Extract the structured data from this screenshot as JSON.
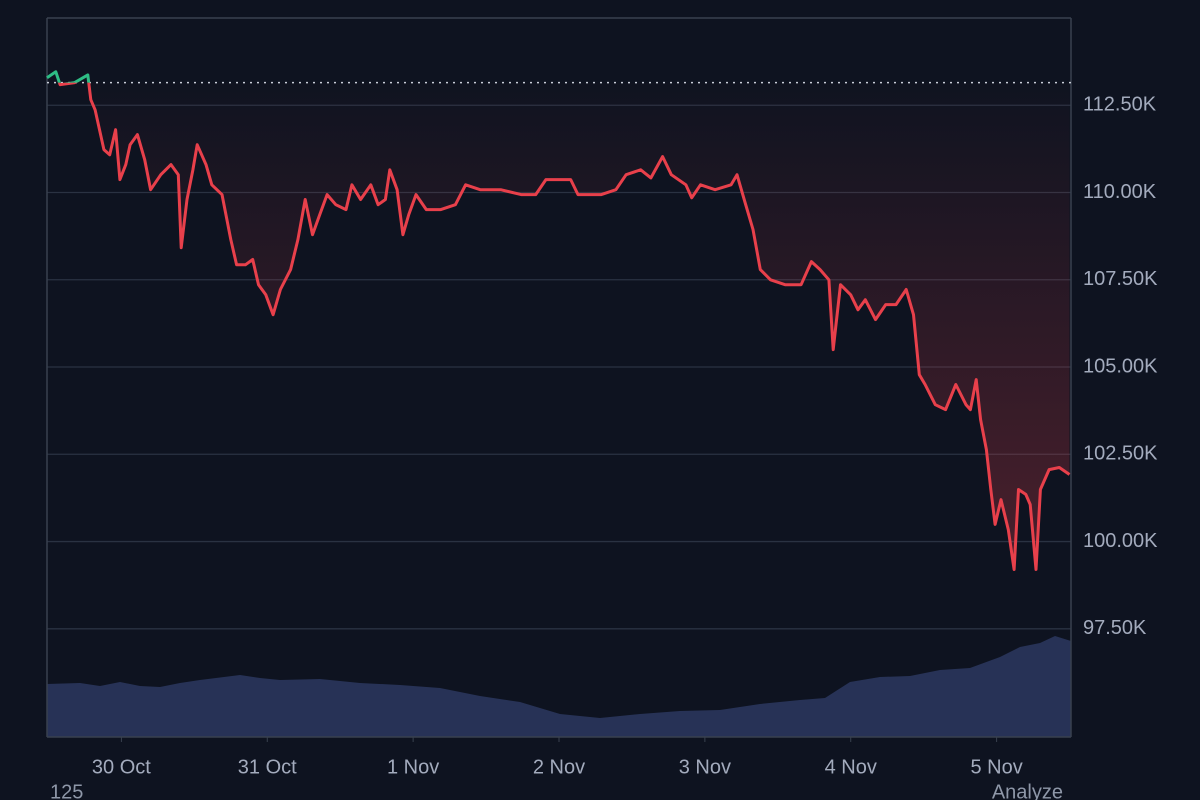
{
  "chart_data": {
    "type": "line",
    "x": [
      -0.51,
      -0.45,
      -0.42,
      -0.32,
      -0.23,
      -0.21,
      -0.18,
      -0.12,
      -0.08,
      -0.04,
      -0.01,
      0.03,
      0.06,
      0.11,
      0.16,
      0.2,
      0.27,
      0.34,
      0.39,
      0.41,
      0.45,
      0.49,
      0.52,
      0.58,
      0.62,
      0.69,
      0.75,
      0.79,
      0.85,
      0.9,
      0.94,
      0.99,
      1.04,
      1.09,
      1.16,
      1.21,
      1.26,
      1.31,
      1.36,
      1.41,
      1.47,
      1.54,
      1.58,
      1.64,
      1.71,
      1.76,
      1.81,
      1.84,
      1.89,
      1.93,
      1.97,
      2.02,
      2.09,
      2.19,
      2.29,
      2.36,
      2.46,
      2.6,
      2.74,
      2.84,
      2.91,
      3.08,
      3.13,
      3.29,
      3.39,
      3.46,
      3.56,
      3.63,
      3.71,
      3.77,
      3.87,
      3.91,
      3.97,
      4.07,
      4.18,
      4.22,
      4.28,
      4.33,
      4.38,
      4.45,
      4.55,
      4.66,
      4.73,
      4.79,
      4.85,
      4.88,
      4.93,
      5.0,
      5.05,
      5.1,
      5.17,
      5.24,
      5.31,
      5.38,
      5.43,
      5.47,
      5.51,
      5.58,
      5.65,
      5.72,
      5.79,
      5.82,
      5.86,
      5.89,
      5.93,
      5.96,
      5.99,
      6.03,
      6.08,
      6.12,
      6.15,
      6.2,
      6.23,
      6.27,
      6.3,
      6.36,
      6.43,
      6.5
    ],
    "values": [
      113290,
      113460,
      113090,
      113150,
      113370,
      112660,
      112370,
      111230,
      111080,
      111800,
      110370,
      110800,
      111370,
      111660,
      110940,
      110080,
      110510,
      110800,
      110510,
      108420,
      109800,
      110650,
      111370,
      110800,
      110220,
      109940,
      108650,
      107930,
      107930,
      108080,
      107360,
      107070,
      106500,
      107220,
      107790,
      108650,
      109800,
      108790,
      109370,
      109940,
      109650,
      109510,
      110220,
      109800,
      110220,
      109650,
      109800,
      110650,
      110080,
      108790,
      109370,
      109940,
      109510,
      109510,
      109650,
      110220,
      110080,
      110080,
      109940,
      109940,
      110370,
      110370,
      109940,
      109940,
      110080,
      110510,
      110650,
      110420,
      111030,
      110510,
      110220,
      109850,
      110220,
      110080,
      110220,
      110510,
      109650,
      108940,
      107790,
      107500,
      107360,
      107360,
      108020,
      107790,
      107500,
      105500,
      107360,
      107070,
      106640,
      106930,
      106360,
      106790,
      106790,
      107220,
      106500,
      104780,
      104500,
      103920,
      103780,
      104500,
      103920,
      103780,
      104640,
      103490,
      102630,
      101490,
      100490,
      101200,
      100340,
      99200,
      101490,
      101350,
      101060,
      99200,
      101490,
      102060,
      102120,
      101920
    ],
    "baseline": 113150,
    "color": "#e8404b",
    "up_color": "#2ebd85",
    "ylim": [
      94400,
      115000
    ],
    "yticks": [
      {
        "value": 97500,
        "label": "97.50K"
      },
      {
        "value": 100000,
        "label": "100.00K"
      },
      {
        "value": 102500,
        "label": "102.50K"
      },
      {
        "value": 105000,
        "label": "105.00K"
      },
      {
        "value": 107500,
        "label": "107.50K"
      },
      {
        "value": 110000,
        "label": "110.00K"
      },
      {
        "value": 112500,
        "label": "112.50K"
      }
    ],
    "xlim": [
      -0.51,
      6.51
    ],
    "xticks": [
      {
        "value": 0,
        "label": "30 Oct"
      },
      {
        "value": 1,
        "label": "31 Oct"
      },
      {
        "value": 2,
        "label": "1 Nov"
      },
      {
        "value": 3,
        "label": "2 Nov"
      },
      {
        "value": 4,
        "label": "3 Nov"
      },
      {
        "value": 5,
        "label": "4 Nov"
      },
      {
        "value": 6,
        "label": "5 Nov"
      }
    ],
    "grid": true,
    "footer_left": "125",
    "footer_right": "Analyze"
  }
}
